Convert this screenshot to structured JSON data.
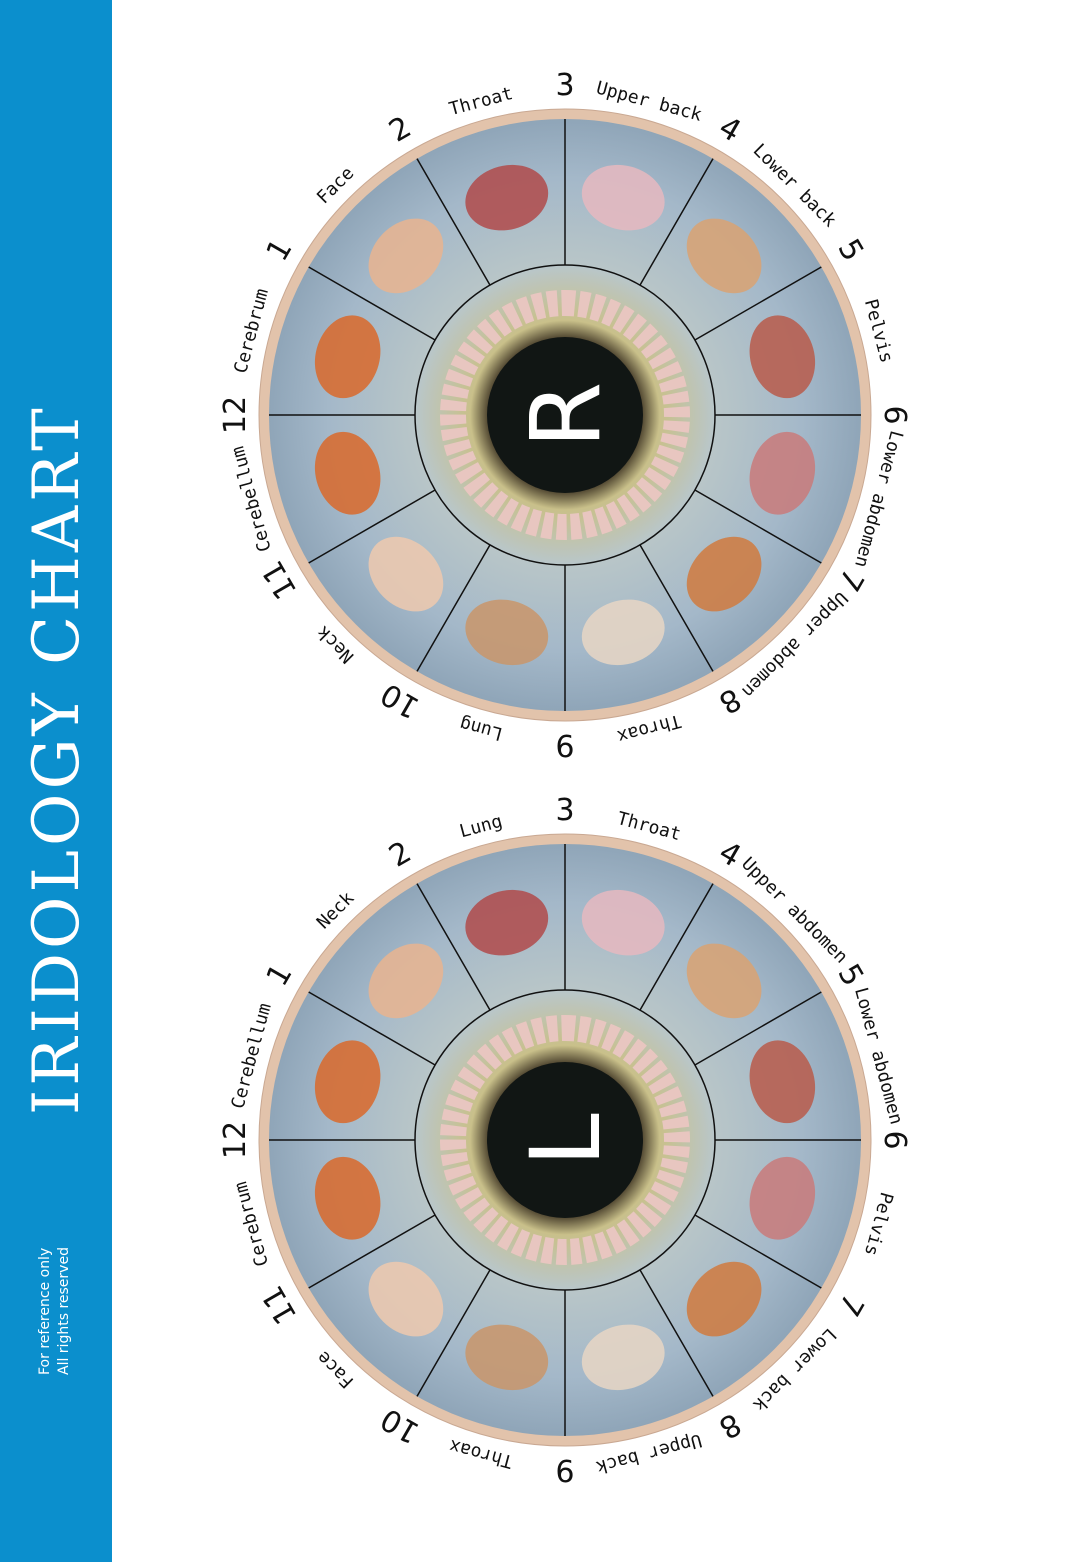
{
  "header": {
    "title": "IRIDOLOGY CHART",
    "note_line1": "For reference only",
    "note_line2": "All rights reserved",
    "band_color": "#0b8fcd"
  },
  "eyes": [
    {
      "letter": "L",
      "numbers": [
        "12",
        "1",
        "2",
        "3",
        "4",
        "5",
        "6",
        "7",
        "8",
        "9",
        "10",
        "11"
      ],
      "zones": [
        "Cerebellum",
        "Neck",
        "Lung",
        "Throat",
        "Upper abdomen",
        "Lower abdomen",
        "Pelvis",
        "Lower back",
        "Upper back",
        "Throax",
        "Face",
        "Cerebrum"
      ]
    },
    {
      "letter": "R",
      "numbers": [
        "12",
        "1",
        "2",
        "3",
        "4",
        "5",
        "6",
        "7",
        "8",
        "9",
        "10",
        "11"
      ],
      "zones": [
        "Cerebrum",
        "Face",
        "Throat",
        "Upper back",
        "Lower back",
        "Pelvis",
        "Lower abdomen",
        "Upper abdomen",
        "Throax",
        "Lung",
        "Neck",
        "Cerebellum"
      ]
    }
  ],
  "colors": {
    "iris": "#a9bccb",
    "iris_inner": "#c9c08a",
    "pupil": "#111614",
    "rim": "#e2c3ab",
    "intestine": "#e8c6c0"
  }
}
